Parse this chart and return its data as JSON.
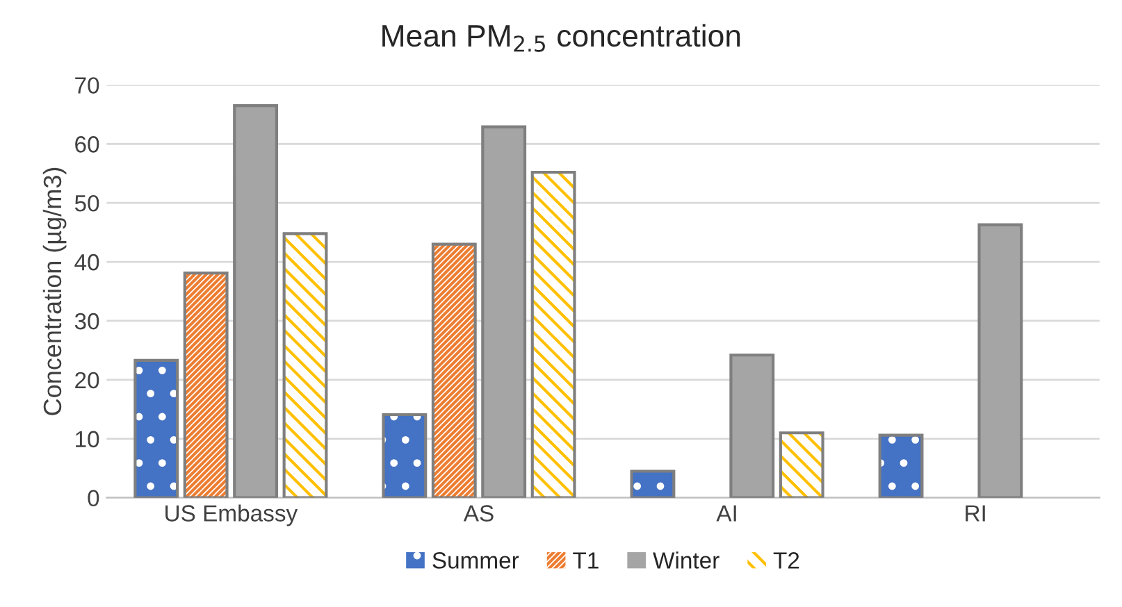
{
  "chart_data": {
    "type": "bar",
    "title": "Mean PM$_{2.5}$ concentration",
    "ylabel": "Concentration (µg/m3)",
    "categories": [
      "US Embassy",
      "AS",
      "AI",
      "RI"
    ],
    "series": [
      {
        "name": "Summer",
        "color": "#4472c4",
        "values": [
          23.3,
          14.1,
          4.5,
          10.6
        ]
      },
      {
        "name": "T1",
        "color": "#ed7d31",
        "values": [
          38.1,
          43.0,
          null,
          null
        ]
      },
      {
        "name": "Winter",
        "color": "#a5a5a5",
        "values": [
          66.5,
          62.9,
          24.2,
          46.3
        ]
      },
      {
        "name": "T2",
        "color": "#ffc000",
        "values": [
          44.8,
          55.2,
          11.0,
          null
        ]
      }
    ],
    "ylim": [
      0,
      70
    ],
    "yticks": [
      0,
      10,
      20,
      30,
      40,
      50,
      60,
      70
    ],
    "grid": "y",
    "legend": "bottom"
  }
}
